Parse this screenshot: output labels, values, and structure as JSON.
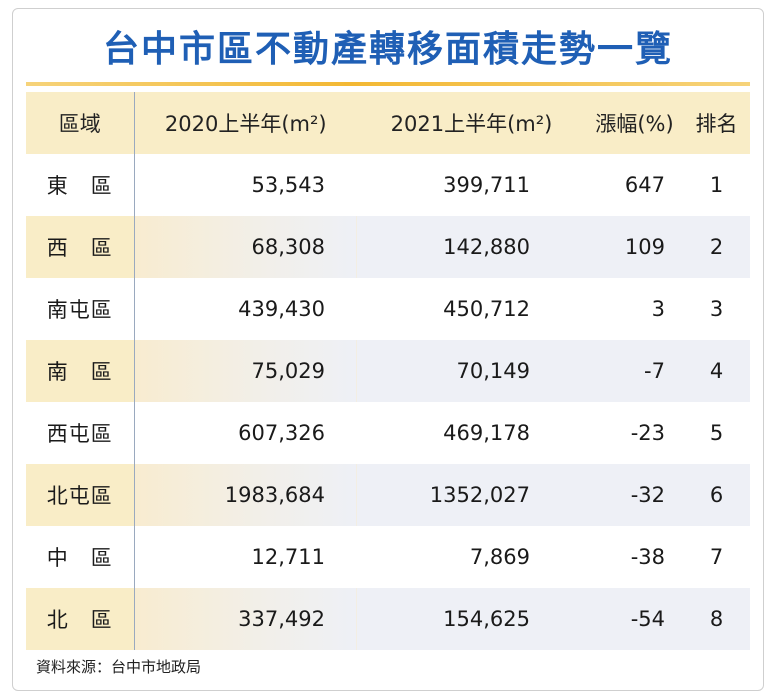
{
  "title": "台中市區不動產轉移面積走勢一覽",
  "colors": {
    "title": "#1f5fb5",
    "header_bg": "#f9edc7",
    "stripe": "#eef0f6",
    "accent": "#f3b833"
  },
  "chart_data": {
    "type": "table",
    "title": "台中市區不動產轉移面積走勢一覽",
    "columns": [
      "區域",
      "2020上半年(m²)",
      "2021上半年(m²)",
      "漲幅(%)",
      "排名"
    ],
    "rows": [
      [
        "東　區",
        "53,543",
        "399,711",
        "647",
        "1"
      ],
      [
        "西　區",
        "68,308",
        "142,880",
        "109",
        "2"
      ],
      [
        "南屯區",
        "439,430",
        "450,712",
        "3",
        "3"
      ],
      [
        "南　區",
        "75,029",
        "70,149",
        "-7",
        "4"
      ],
      [
        "西屯區",
        "607,326",
        "469,178",
        "-23",
        "5"
      ],
      [
        "北屯區",
        "1983,684",
        "1352,027",
        "-32",
        "6"
      ],
      [
        "中　區",
        "12,711",
        "7,869",
        "-38",
        "7"
      ],
      [
        "北　區",
        "337,492",
        "154,625",
        "-54",
        "8"
      ]
    ],
    "source": "資料來源：台中市地政局"
  }
}
